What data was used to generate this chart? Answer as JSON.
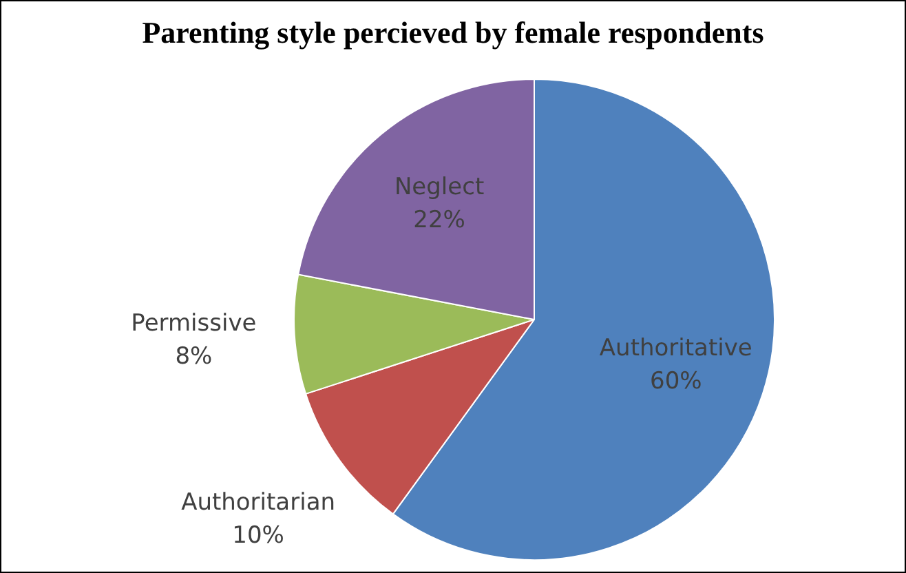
{
  "chart_data": {
    "type": "pie",
    "title": "Parenting style percieved by female respondents",
    "categories": [
      "Authoritative",
      "Authoritarian",
      "Permissive",
      "Neglect"
    ],
    "values": [
      60,
      10,
      8,
      22
    ],
    "colors": [
      "#4f81bd",
      "#c0504d",
      "#9bbb59",
      "#8064a2"
    ],
    "value_labels": [
      "60%",
      "10%",
      "8%",
      "22%"
    ],
    "legend": false
  }
}
